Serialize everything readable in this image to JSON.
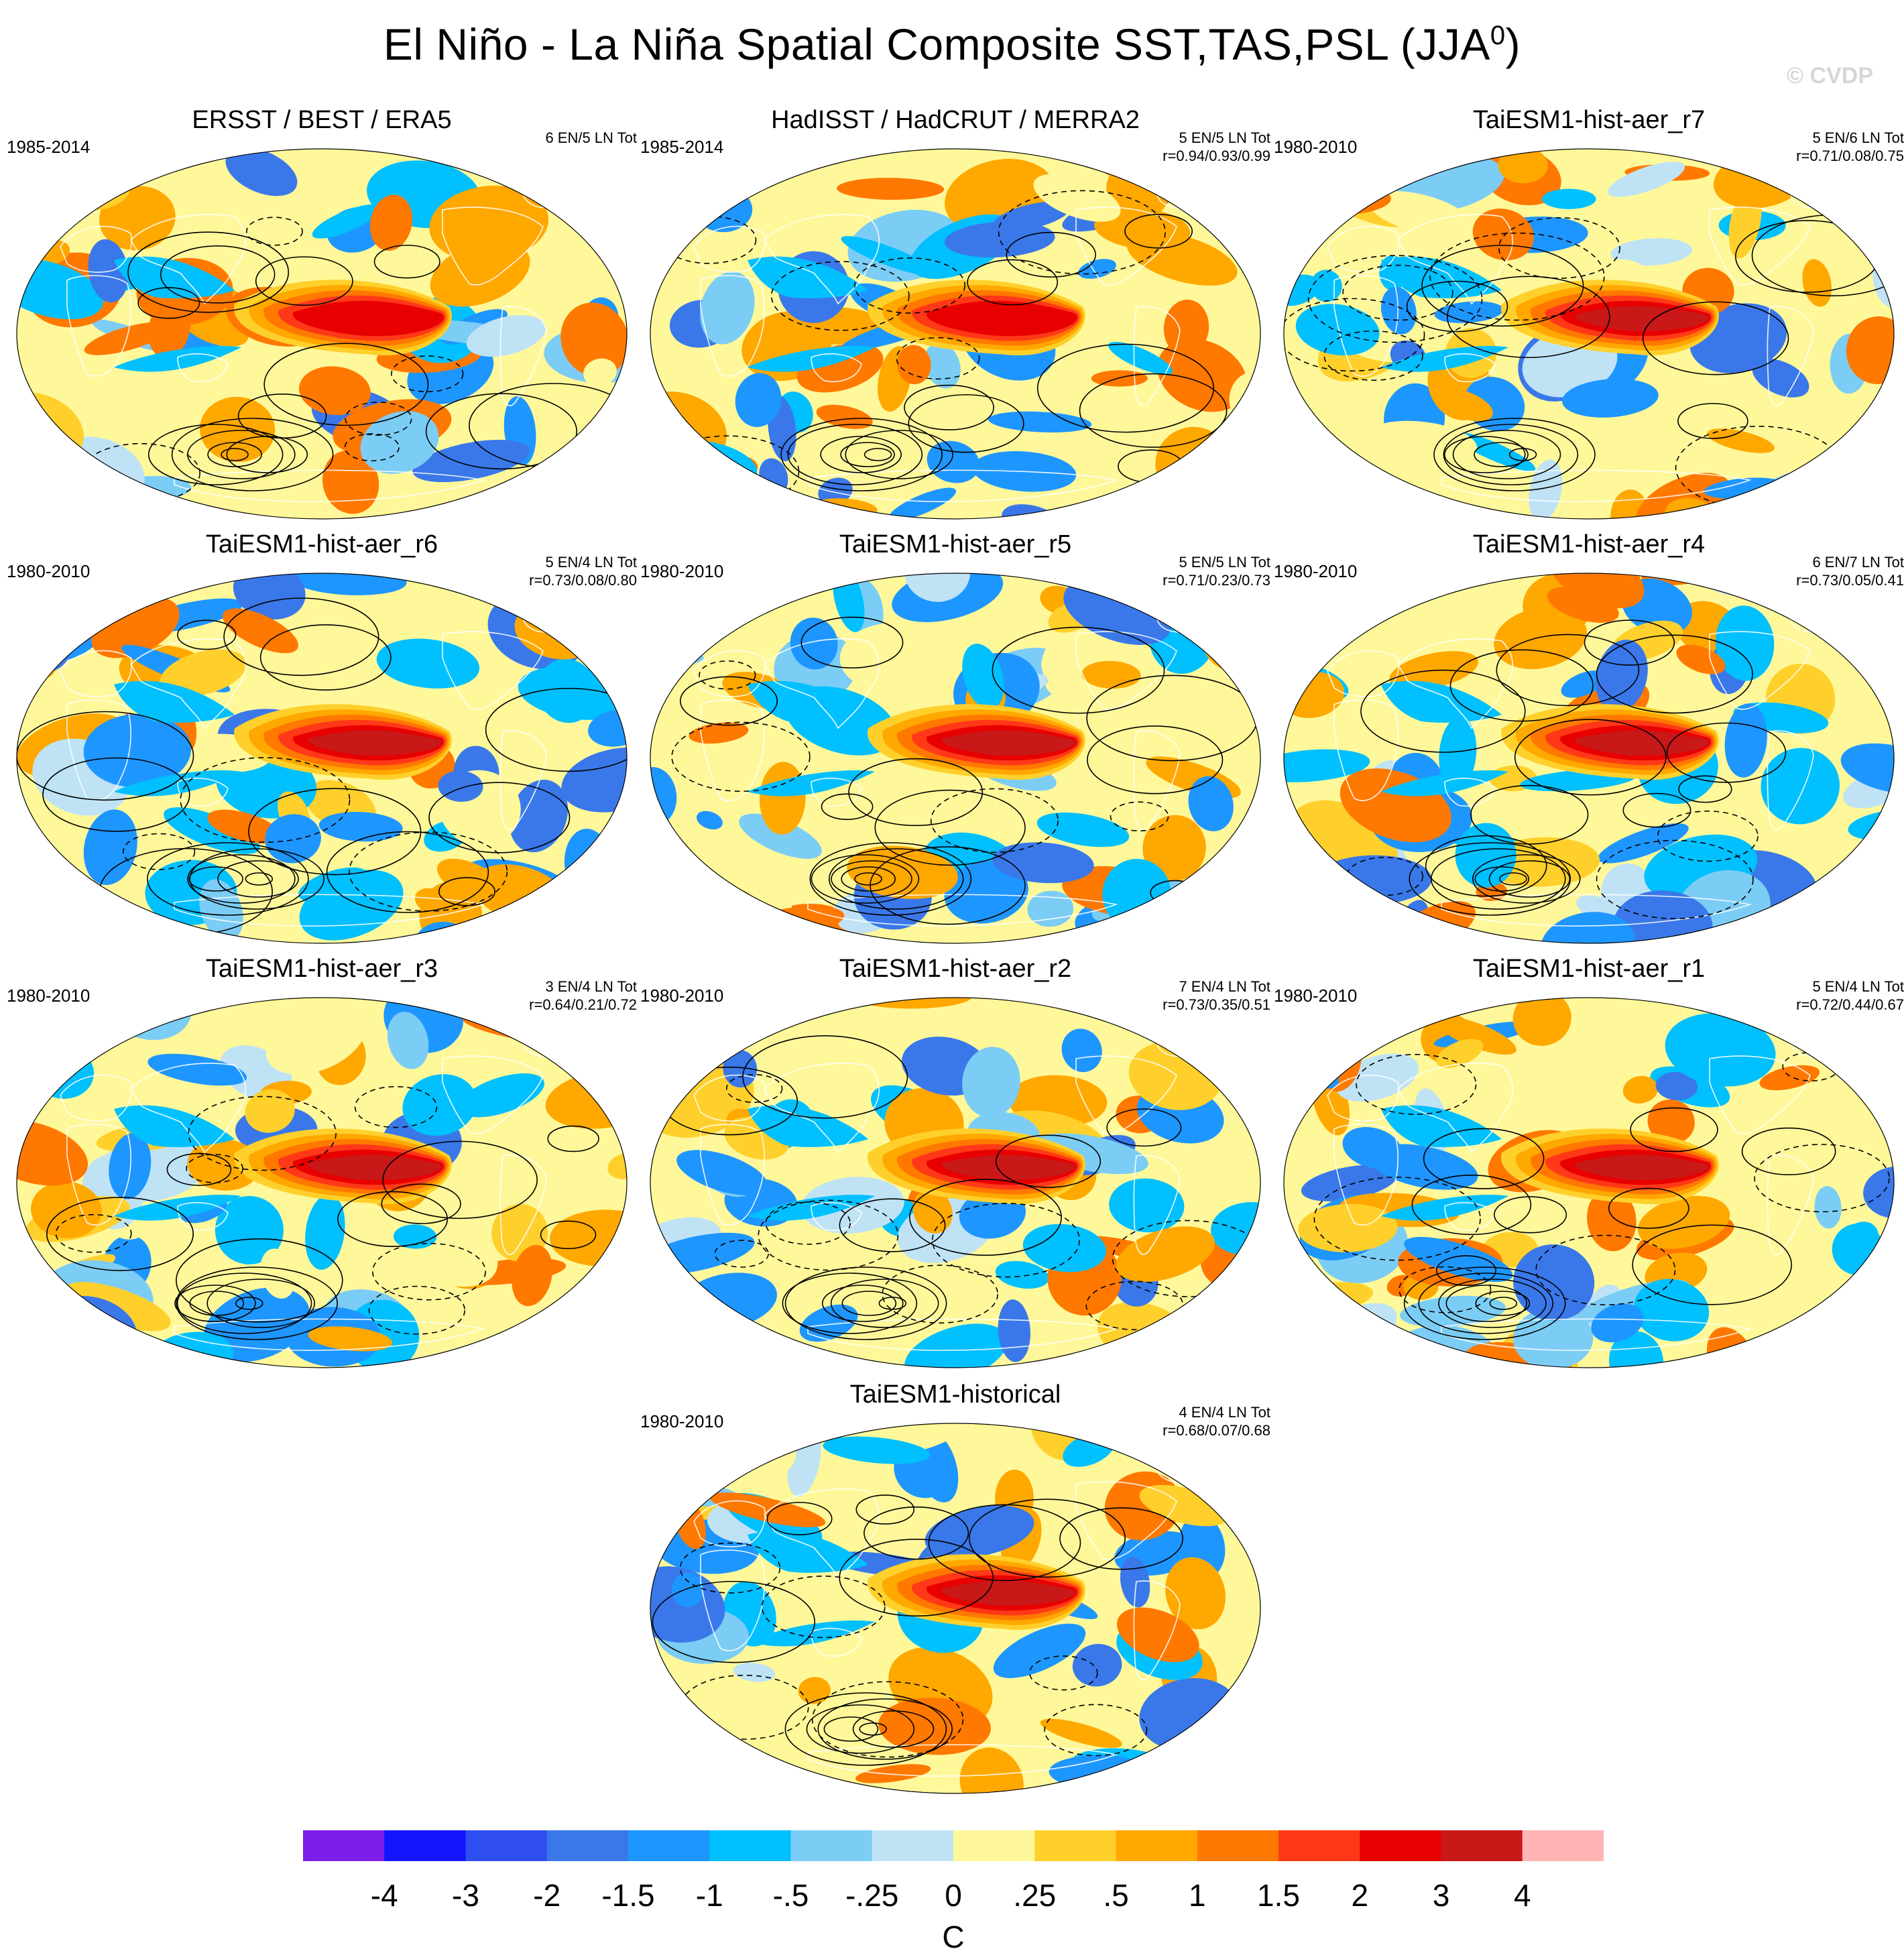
{
  "title": "El Niño - La Niña Spatial Composite SST,TAS,PSL (JJA",
  "title_sup": "0",
  "title_end": ")",
  "copyright": "© CVDP",
  "chart_data": {
    "type": "heatmap",
    "projection": "Robinson (global), filled SST/TAS anomaly contours with PSL line contours",
    "colorbar": {
      "unit": "C",
      "levels": [
        "-4",
        "-3",
        "-2",
        "-1.5",
        "-1",
        "-.5",
        "-.25",
        "0",
        ".25",
        ".5",
        "1",
        "1.5",
        "2",
        "3",
        "4"
      ],
      "colors": [
        "#7c1de8",
        "#1414ff",
        "#2f4ef0",
        "#3a78ea",
        "#1e96ff",
        "#00c0ff",
        "#7ccdf5",
        "#bfe3f5",
        "#fff89a",
        "#ffd02c",
        "#ffa800",
        "#ff7800",
        "#ff3818",
        "#e80000",
        "#c81818",
        "#ffb4b4"
      ]
    },
    "panels": [
      {
        "title": "ERSST / BEST / ERA5",
        "years": "1985-2014",
        "counts": "6 EN/5 LN Tot",
        "r": "",
        "enso": 2.0,
        "seed": 11
      },
      {
        "title": "HadISST / HadCRUT / MERRA2",
        "years": "1985-2014",
        "counts": "5 EN/5 LN Tot",
        "r": "r=0.94/0.93/0.99",
        "enso": 2.0,
        "seed": 23
      },
      {
        "title": "TaiESM1-hist-aer_r7",
        "years": "1980-2010",
        "counts": "5 EN/6 LN Tot",
        "r": "r=0.71/0.08/0.75",
        "enso": 3.2,
        "seed": 37
      },
      {
        "title": "TaiESM1-hist-aer_r6",
        "years": "1980-2010",
        "counts": "5 EN/4 LN Tot",
        "r": "r=0.73/0.08/0.80",
        "enso": 3.0,
        "seed": 41
      },
      {
        "title": "TaiESM1-hist-aer_r5",
        "years": "1980-2010",
        "counts": "5 EN/5 LN Tot",
        "r": "r=0.71/0.23/0.73",
        "enso": 3.6,
        "seed": 53
      },
      {
        "title": "TaiESM1-hist-aer_r4",
        "years": "1980-2010",
        "counts": "6 EN/7 LN Tot",
        "r": "r=0.73/0.05/0.41",
        "enso": 3.0,
        "seed": 67
      },
      {
        "title": "TaiESM1-hist-aer_r3",
        "years": "1980-2010",
        "counts": "3 EN/4 LN Tot",
        "r": "r=0.64/0.21/0.72",
        "enso": 3.2,
        "seed": 71
      },
      {
        "title": "TaiESM1-hist-aer_r2",
        "years": "1980-2010",
        "counts": "7 EN/4 LN Tot",
        "r": "r=0.73/0.35/0.51",
        "enso": 3.0,
        "seed": 83
      },
      {
        "title": "TaiESM1-hist-aer_r1",
        "years": "1980-2010",
        "counts": "5 EN/4 LN Tot",
        "r": "r=0.72/0.44/0.67",
        "enso": 3.0,
        "seed": 97
      },
      {
        "title": "TaiESM1-historical",
        "years": "1980-2010",
        "counts": "4 EN/4 LN Tot",
        "r": "r=0.68/0.07/0.68",
        "enso": 3.2,
        "seed": 101
      }
    ]
  }
}
